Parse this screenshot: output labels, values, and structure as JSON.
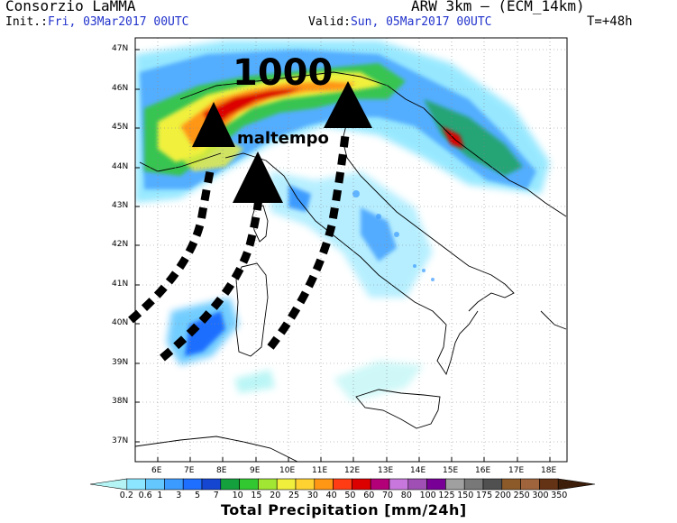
{
  "header": {
    "title_left": "Consorzio LaMMA",
    "init_label": "Init.:",
    "init_value": "Fri, 03Mar2017 00UTC",
    "valid_label": "Valid:",
    "valid_value": "Sun, 05Mar2017 00UTC",
    "title_right": "ARW 3km – (ECM_14km)",
    "timestep": "T=+48h"
  },
  "map": {
    "lat_labels": [
      "47N",
      "46N",
      "45N",
      "44N",
      "43N",
      "42N",
      "41N",
      "40N",
      "39N",
      "38N",
      "37N"
    ],
    "lon_labels": [
      "6E",
      "7E",
      "8E",
      "9E",
      "10E",
      "11E",
      "12E",
      "13E",
      "14E",
      "15E",
      "16E",
      "17E",
      "18E"
    ]
  },
  "annotations": {
    "pressure": "1000",
    "note": "maltempo"
  },
  "colorbar": {
    "title": "Total Precipitation [mm/24h]",
    "levels": [
      "0.2",
      "0.6",
      "1",
      "3",
      "5",
      "7",
      "10",
      "15",
      "20",
      "25",
      "30",
      "40",
      "50",
      "60",
      "70",
      "80",
      "100",
      "125",
      "150",
      "175",
      "200",
      "250",
      "300",
      "350"
    ],
    "colors": [
      "#b4f4f4",
      "#8ce6ff",
      "#64c8ff",
      "#3c9bff",
      "#1e6eff",
      "#1446d2",
      "#14a03c",
      "#32c832",
      "#a0e632",
      "#f0f03c",
      "#ffd232",
      "#ff9614",
      "#ff3c14",
      "#dc0000",
      "#b40078",
      "#c878dc",
      "#a050b4",
      "#780096",
      "#a0a0a0",
      "#787878",
      "#505050",
      "#8c5a28",
      "#a0643c",
      "#643214",
      "#3c1e0a"
    ]
  }
}
